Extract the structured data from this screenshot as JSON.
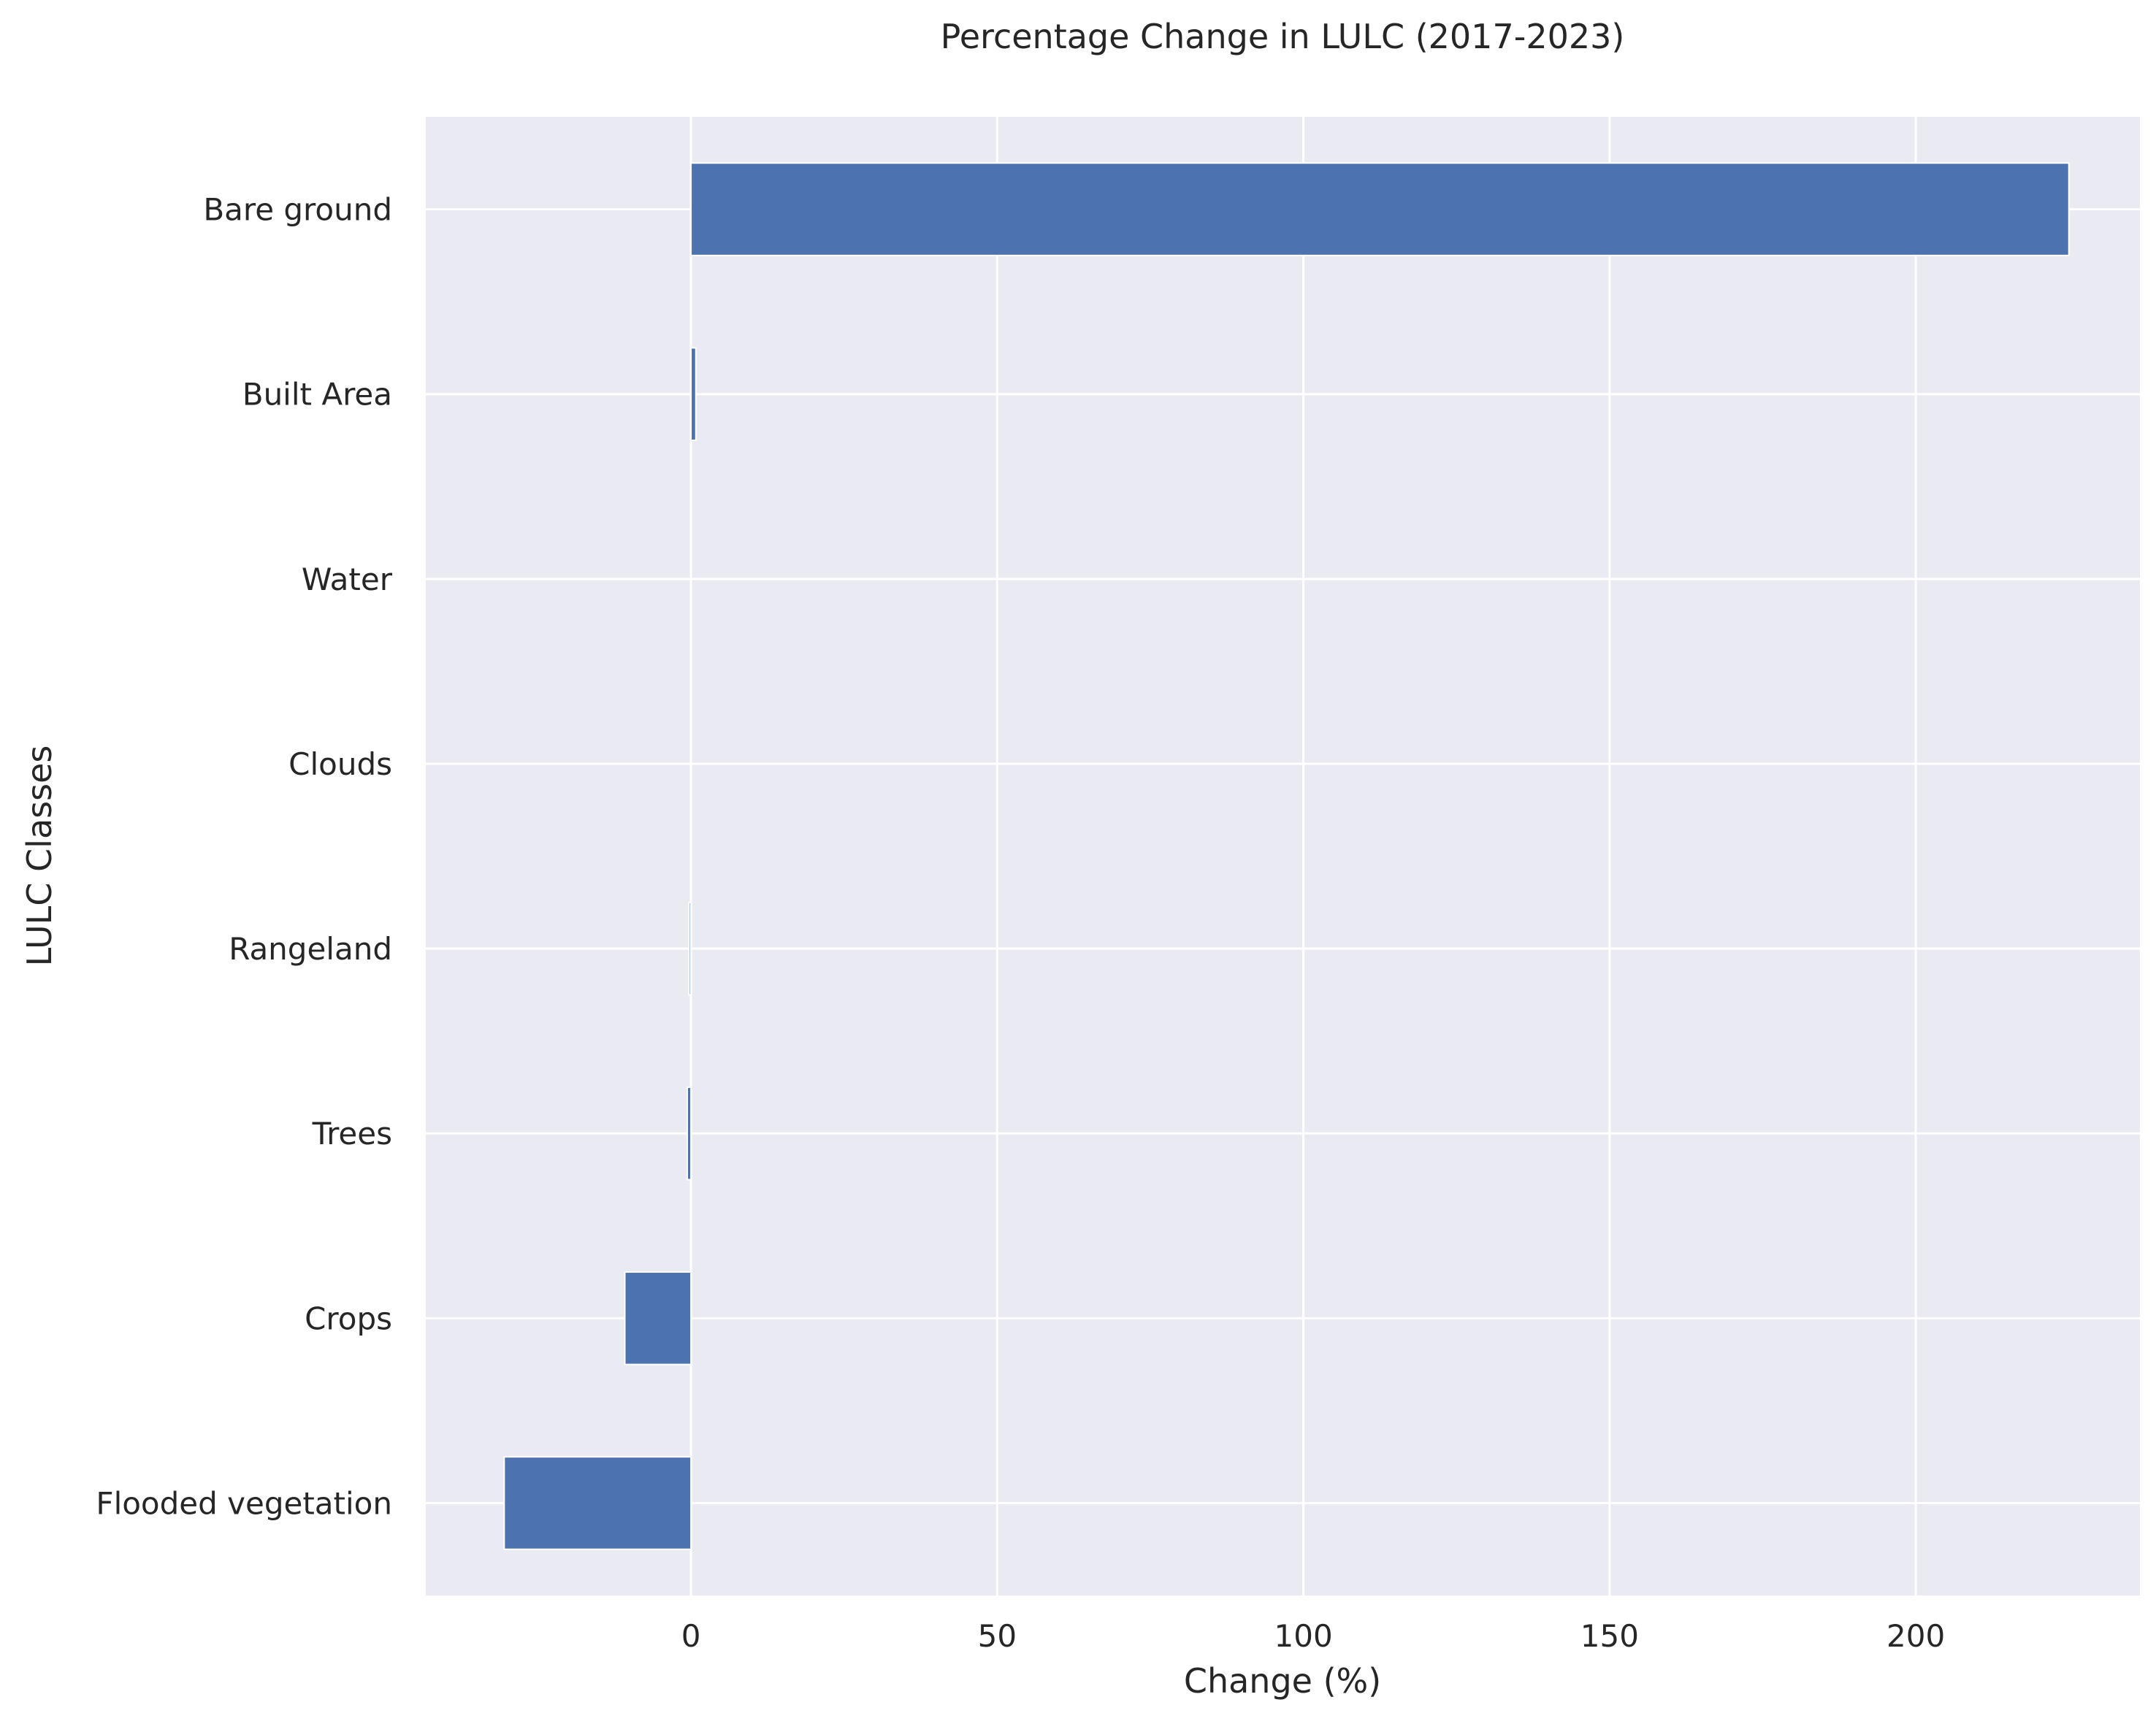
{
  "chart_data": {
    "type": "bar",
    "orientation": "horizontal",
    "title": "Percentage Change in LULC (2017-2023)",
    "xlabel": "Change (%)",
    "ylabel": "LULC Classes",
    "categories": [
      "Flooded vegetation",
      "Crops",
      "Trees",
      "Rangeland",
      "Clouds",
      "Water",
      "Built Area",
      "Bare ground"
    ],
    "values": [
      -30.5,
      -10.8,
      -0.6,
      -0.3,
      0.0,
      0.0,
      0.8,
      225.0
    ],
    "xlim": [
      -43.3,
      236.6
    ],
    "xticks": [
      0,
      50,
      100,
      150,
      200
    ],
    "grid": true,
    "legend": "none",
    "colors": {
      "bar": "#4c72b0",
      "plot_background": "#eaeaf2",
      "grid": "#ffffff",
      "text": "#262626"
    }
  }
}
